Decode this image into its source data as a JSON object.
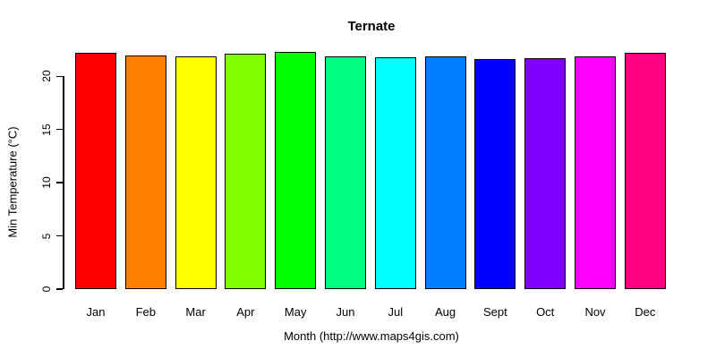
{
  "chart_data": {
    "type": "bar",
    "title": "Ternate",
    "xlabel": "Month (http://www.maps4gis.com)",
    "ylabel": "Min Temperature (°C)",
    "categories": [
      "Jan",
      "Feb",
      "Mar",
      "Apr",
      "May",
      "Jun",
      "Jul",
      "Aug",
      "Sept",
      "Oct",
      "Nov",
      "Dec"
    ],
    "values": [
      22.2,
      22.0,
      21.9,
      22.1,
      22.3,
      21.9,
      21.8,
      21.9,
      21.6,
      21.7,
      21.9,
      22.2
    ],
    "bar_colors": [
      "#FF0000",
      "#FF8000",
      "#FFFF00",
      "#80FF00",
      "#00FF00",
      "#00FF80",
      "#00FFFF",
      "#0080FF",
      "#0000FF",
      "#8000FF",
      "#FF00FF",
      "#FF0080"
    ],
    "bar_border_color": "#000000",
    "yticks": [
      0,
      5,
      10,
      15,
      20
    ],
    "ylim": [
      0,
      22.5
    ],
    "grid": false,
    "legend": "none",
    "background": "#FFFFFF",
    "axis_color": "#000000"
  }
}
